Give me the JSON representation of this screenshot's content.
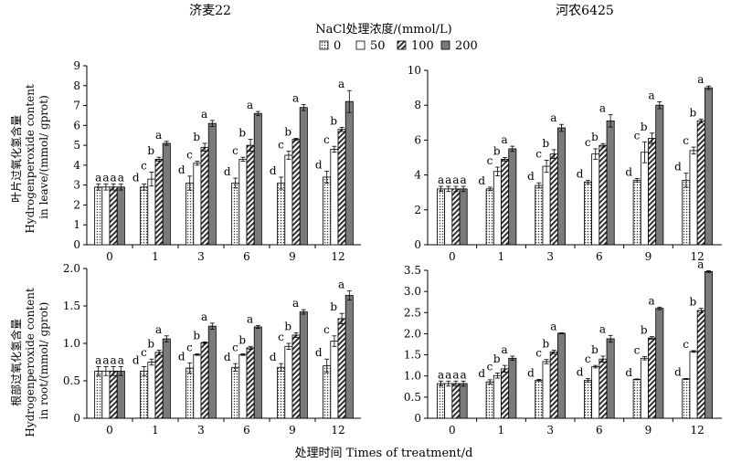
{
  "figure": {
    "legend_title": "NaCl处理浓度/(mmol/L)",
    "legend_labels": [
      "0",
      "50",
      "100",
      "200"
    ],
    "x_title": "处理时间 Times of treatment/d",
    "col_titles": [
      "济麦22",
      "河农6425"
    ],
    "row_ylabels": [
      [
        "叶片过氧化氢含量",
        "Hydrogenperoxide content",
        "in leave/(mmol/ gprot)"
      ],
      [
        "根部过氧化氢含量",
        "Hydrogenperoxide content",
        "in root/(mmol/ gprot)"
      ]
    ]
  },
  "chart_data": [
    {
      "type": "bar",
      "title": "济麦22",
      "panel": "leaf",
      "categories": [
        "0",
        "1",
        "3",
        "6",
        "9",
        "12"
      ],
      "ylim": [
        0,
        9
      ],
      "yticks": [
        "0",
        "1",
        "2",
        "3",
        "4",
        "5",
        "6",
        "7",
        "8",
        "9"
      ],
      "series": [
        {
          "name": "0",
          "values": [
            2.9,
            2.9,
            3.1,
            3.1,
            3.1,
            3.4
          ],
          "errors": [
            0.15,
            0.15,
            0.35,
            0.25,
            0.3,
            0.3
          ],
          "labels": [
            "a",
            "d",
            "d",
            "d",
            "d",
            "d"
          ]
        },
        {
          "name": "50",
          "values": [
            2.9,
            3.3,
            4.1,
            4.3,
            4.5,
            4.8
          ],
          "errors": [
            0.15,
            0.35,
            0.1,
            0.1,
            0.2,
            0.15
          ],
          "labels": [
            "a",
            "c",
            "c",
            "c",
            "c",
            "c"
          ]
        },
        {
          "name": "100",
          "values": [
            2.9,
            4.3,
            4.9,
            5.0,
            5.3,
            5.8
          ],
          "errors": [
            0.15,
            0.1,
            0.2,
            0.3,
            0.05,
            0.1
          ],
          "labels": [
            "a",
            "b",
            "b",
            "b",
            "b",
            "b"
          ]
        },
        {
          "name": "200",
          "values": [
            2.9,
            5.1,
            6.1,
            6.6,
            6.9,
            7.2
          ],
          "errors": [
            0.15,
            0.1,
            0.15,
            0.1,
            0.15,
            0.55
          ],
          "labels": [
            "a",
            "a",
            "a",
            "a",
            "a",
            "a"
          ]
        }
      ]
    },
    {
      "type": "bar",
      "title": "河农6425",
      "panel": "leaf",
      "categories": [
        "0",
        "1",
        "3",
        "6",
        "9",
        "12"
      ],
      "ylim": [
        0,
        10
      ],
      "yticks": [
        "0",
        "2",
        "4",
        "6",
        "8",
        "10"
      ],
      "series": [
        {
          "name": "0",
          "values": [
            3.2,
            3.2,
            3.4,
            3.6,
            3.7,
            3.7
          ],
          "errors": [
            0.15,
            0.1,
            0.15,
            0.1,
            0.1,
            0.4
          ],
          "labels": [
            "a",
            "d",
            "d",
            "d",
            "d",
            "d"
          ]
        },
        {
          "name": "50",
          "values": [
            3.2,
            4.2,
            4.5,
            5.2,
            5.3,
            5.4
          ],
          "errors": [
            0.15,
            0.25,
            0.35,
            0.3,
            0.6,
            0.2
          ],
          "labels": [
            "a",
            "c",
            "c",
            "c",
            "c",
            "c"
          ]
        },
        {
          "name": "100",
          "values": [
            3.2,
            4.9,
            5.2,
            5.7,
            6.1,
            7.1
          ],
          "errors": [
            0.15,
            0.1,
            0.25,
            0.1,
            0.3,
            0.1
          ],
          "labels": [
            "a",
            "b",
            "b",
            "b",
            "b",
            "b"
          ]
        },
        {
          "name": "200",
          "values": [
            3.2,
            5.5,
            6.7,
            7.1,
            8.0,
            9.0
          ],
          "errors": [
            0.15,
            0.15,
            0.2,
            0.35,
            0.2,
            0.1
          ],
          "labels": [
            "a",
            "a",
            "a",
            "a",
            "a",
            "a"
          ]
        }
      ]
    },
    {
      "type": "bar",
      "title": "济麦22",
      "panel": "root",
      "categories": [
        "0",
        "1",
        "3",
        "6",
        "9",
        "12"
      ],
      "ylim": [
        0,
        2.0
      ],
      "yticks": [
        "0",
        "0.5",
        "1.0",
        "1.5",
        "2.0"
      ],
      "series": [
        {
          "name": "0",
          "values": [
            0.63,
            0.63,
            0.67,
            0.68,
            0.68,
            0.7
          ],
          "errors": [
            0.06,
            0.06,
            0.07,
            0.05,
            0.05,
            0.09
          ],
          "labels": [
            "a",
            "d",
            "d",
            "d",
            "d",
            "d"
          ]
        },
        {
          "name": "50",
          "values": [
            0.63,
            0.75,
            0.85,
            0.85,
            0.96,
            1.03
          ],
          "errors": [
            0.06,
            0.04,
            0.01,
            0.01,
            0.04,
            0.07
          ],
          "labels": [
            "a",
            "c",
            "c",
            "c",
            "c",
            "c"
          ]
        },
        {
          "name": "100",
          "values": [
            0.63,
            0.88,
            1.01,
            0.94,
            1.11,
            1.33
          ],
          "errors": [
            0.06,
            0.03,
            0.01,
            0.02,
            0.03,
            0.07
          ],
          "labels": [
            "a",
            "b",
            "b",
            "b",
            "b",
            "b"
          ]
        },
        {
          "name": "200",
          "values": [
            0.63,
            1.06,
            1.23,
            1.22,
            1.42,
            1.64
          ],
          "errors": [
            0.06,
            0.04,
            0.04,
            0.02,
            0.03,
            0.06
          ],
          "labels": [
            "a",
            "a",
            "a",
            "a",
            "a",
            "a"
          ]
        }
      ]
    },
    {
      "type": "bar",
      "title": "河农6425",
      "panel": "root",
      "categories": [
        "0",
        "1",
        "3",
        "6",
        "9",
        "12"
      ],
      "ylim": [
        0,
        3.5
      ],
      "yticks": [
        "0",
        "0.5",
        "1.0",
        "1.5",
        "2.0",
        "2.5",
        "3.0",
        "3.5"
      ],
      "series": [
        {
          "name": "0",
          "values": [
            0.82,
            0.86,
            0.9,
            0.9,
            0.92,
            0.93
          ],
          "errors": [
            0.06,
            0.05,
            0.02,
            0.04,
            0.01,
            0.01
          ],
          "labels": [
            "a",
            "d",
            "d",
            "d",
            "d",
            "d"
          ]
        },
        {
          "name": "50",
          "values": [
            0.82,
            1.01,
            1.34,
            1.22,
            1.42,
            1.58
          ],
          "errors": [
            0.06,
            0.06,
            0.05,
            0.03,
            0.04,
            0.02
          ],
          "labels": [
            "a",
            "c",
            "c",
            "c",
            "c",
            "c"
          ]
        },
        {
          "name": "100",
          "values": [
            0.82,
            1.17,
            1.57,
            1.4,
            1.9,
            2.55
          ],
          "errors": [
            0.06,
            0.08,
            0.04,
            0.07,
            0.03,
            0.05
          ],
          "labels": [
            "a",
            "b",
            "b",
            "b",
            "b",
            "b"
          ]
        },
        {
          "name": "200",
          "values": [
            0.82,
            1.42,
            2.01,
            1.88,
            2.6,
            3.47
          ],
          "errors": [
            0.06,
            0.05,
            0.01,
            0.08,
            0.03,
            0.02
          ],
          "labels": [
            "a",
            "a",
            "a",
            "a",
            "a",
            "a"
          ]
        }
      ]
    }
  ]
}
